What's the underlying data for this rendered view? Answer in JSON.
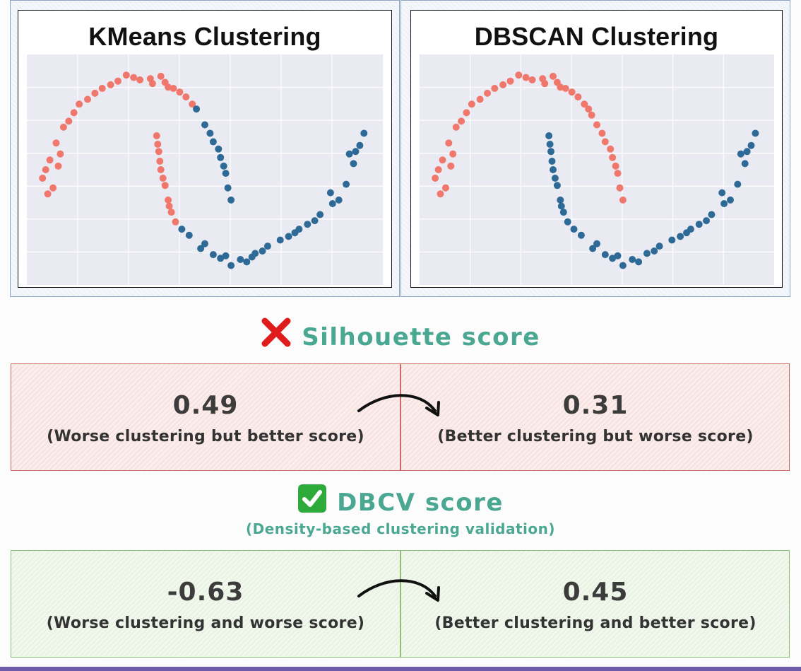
{
  "plots": [
    {
      "title": "KMeans Clustering"
    },
    {
      "title": "DBSCAN Clustering"
    }
  ],
  "chart_data": [
    {
      "type": "scatter",
      "title": "KMeans Clustering",
      "xlim": [
        -1.2,
        2.2
      ],
      "ylim": [
        -0.7,
        1.2
      ],
      "grid": true,
      "colors": {
        "cluster_a": "#f0776c",
        "cluster_b": "#2e6a96"
      },
      "series": [
        {
          "color": "#f0776c",
          "points": [
            [
              -1.0,
              0.05
            ],
            [
              -1.05,
              0.18
            ],
            [
              -0.98,
              0.33
            ],
            [
              -0.92,
              0.47
            ],
            [
              -0.85,
              0.6
            ],
            [
              -0.75,
              0.72
            ],
            [
              -0.62,
              0.83
            ],
            [
              -0.48,
              0.92
            ],
            [
              -0.33,
              0.98
            ],
            [
              -0.18,
              1.01
            ],
            [
              -0.02,
              1.0
            ],
            [
              0.12,
              0.97
            ],
            [
              0.26,
              0.89
            ],
            [
              0.38,
              0.79
            ],
            [
              -0.95,
              0.1
            ],
            [
              -0.88,
              0.38
            ],
            [
              -0.7,
              0.79
            ],
            [
              -0.4,
              0.95
            ],
            [
              0.0,
              0.96
            ],
            [
              0.2,
              0.92
            ],
            [
              0.32,
              0.85
            ],
            [
              -0.55,
              0.88
            ],
            [
              -0.25,
              1.03
            ],
            [
              0.08,
              1.02
            ],
            [
              -1.02,
              0.25
            ],
            [
              -0.8,
              0.65
            ],
            [
              0.15,
              0.93
            ],
            [
              -0.12,
              0.99
            ],
            [
              -0.9,
              0.28
            ],
            [
              0.04,
              0.53
            ],
            [
              0.06,
              0.4
            ],
            [
              0.08,
              0.25
            ],
            [
              0.12,
              0.12
            ],
            [
              0.15,
              0.0
            ],
            [
              0.18,
              -0.1
            ],
            [
              0.22,
              -0.18
            ],
            [
              0.07,
              0.32
            ],
            [
              0.1,
              0.18
            ],
            [
              0.16,
              -0.05
            ],
            [
              0.05,
              0.46
            ]
          ]
        },
        {
          "color": "#2e6a96",
          "points": [
            [
              0.28,
              -0.24
            ],
            [
              0.35,
              -0.29
            ],
            [
              0.46,
              -0.4
            ],
            [
              0.58,
              -0.45
            ],
            [
              0.7,
              -0.46
            ],
            [
              0.84,
              -0.49
            ],
            [
              0.98,
              -0.44
            ],
            [
              1.1,
              -0.38
            ],
            [
              1.22,
              -0.33
            ],
            [
              1.36,
              -0.27
            ],
            [
              1.48,
              -0.2
            ],
            [
              1.6,
              -0.12
            ],
            [
              1.72,
              -0.03
            ],
            [
              1.85,
              0.13
            ],
            [
              1.92,
              0.3
            ],
            [
              1.98,
              0.45
            ],
            [
              2.02,
              0.55
            ],
            [
              1.88,
              0.38
            ],
            [
              1.7,
              0.06
            ],
            [
              0.75,
              -0.54
            ],
            [
              0.9,
              -0.51
            ],
            [
              1.3,
              -0.3
            ],
            [
              1.55,
              -0.17
            ],
            [
              0.5,
              -0.36
            ],
            [
              1.05,
              -0.42
            ],
            [
              1.94,
              0.4
            ],
            [
              1.78,
              0.0
            ],
            [
              0.65,
              -0.48
            ],
            [
              1.4,
              -0.24
            ],
            [
              0.95,
              -0.47
            ],
            [
              0.42,
              0.75
            ],
            [
              0.5,
              0.62
            ],
            [
              0.58,
              0.48
            ],
            [
              0.65,
              0.35
            ],
            [
              0.7,
              0.22
            ],
            [
              0.72,
              0.1
            ],
            [
              0.75,
              0.0
            ],
            [
              0.55,
              0.55
            ],
            [
              0.68,
              0.28
            ],
            [
              0.63,
              0.42
            ]
          ]
        }
      ]
    },
    {
      "type": "scatter",
      "title": "DBSCAN Clustering",
      "xlim": [
        -1.2,
        2.2
      ],
      "ylim": [
        -0.7,
        1.2
      ],
      "grid": true,
      "colors": {
        "cluster_a": "#f0776c",
        "cluster_b": "#2e6a96"
      },
      "series": [
        {
          "color": "#f0776c",
          "points": [
            [
              -1.0,
              0.05
            ],
            [
              -1.05,
              0.18
            ],
            [
              -0.98,
              0.33
            ],
            [
              -0.92,
              0.47
            ],
            [
              -0.85,
              0.6
            ],
            [
              -0.75,
              0.72
            ],
            [
              -0.62,
              0.83
            ],
            [
              -0.48,
              0.92
            ],
            [
              -0.33,
              0.98
            ],
            [
              -0.18,
              1.01
            ],
            [
              -0.02,
              1.0
            ],
            [
              0.12,
              0.97
            ],
            [
              0.26,
              0.89
            ],
            [
              0.38,
              0.79
            ],
            [
              -0.95,
              0.1
            ],
            [
              -0.88,
              0.38
            ],
            [
              -0.7,
              0.79
            ],
            [
              -0.4,
              0.95
            ],
            [
              0.0,
              0.96
            ],
            [
              0.2,
              0.92
            ],
            [
              0.32,
              0.85
            ],
            [
              -0.55,
              0.88
            ],
            [
              -0.25,
              1.03
            ],
            [
              0.08,
              1.02
            ],
            [
              -1.02,
              0.25
            ],
            [
              -0.8,
              0.65
            ],
            [
              0.15,
              0.93
            ],
            [
              -0.12,
              0.99
            ],
            [
              -0.9,
              0.28
            ],
            [
              0.42,
              0.75
            ],
            [
              0.5,
              0.62
            ],
            [
              0.58,
              0.48
            ],
            [
              0.65,
              0.35
            ],
            [
              0.7,
              0.22
            ],
            [
              0.72,
              0.1
            ],
            [
              0.75,
              0.0
            ],
            [
              0.55,
              0.55
            ],
            [
              0.68,
              0.28
            ],
            [
              0.63,
              0.42
            ],
            [
              0.45,
              0.7
            ]
          ]
        },
        {
          "color": "#2e6a96",
          "points": [
            [
              0.04,
              0.53
            ],
            [
              0.06,
              0.4
            ],
            [
              0.08,
              0.25
            ],
            [
              0.12,
              0.12
            ],
            [
              0.15,
              0.0
            ],
            [
              0.18,
              -0.1
            ],
            [
              0.22,
              -0.18
            ],
            [
              0.07,
              0.32
            ],
            [
              0.1,
              0.18
            ],
            [
              0.16,
              -0.05
            ],
            [
              0.05,
              0.46
            ],
            [
              0.28,
              -0.24
            ],
            [
              0.35,
              -0.29
            ],
            [
              0.46,
              -0.4
            ],
            [
              0.58,
              -0.45
            ],
            [
              0.7,
              -0.46
            ],
            [
              0.84,
              -0.49
            ],
            [
              0.98,
              -0.44
            ],
            [
              1.1,
              -0.38
            ],
            [
              1.22,
              -0.33
            ],
            [
              1.36,
              -0.27
            ],
            [
              1.48,
              -0.2
            ],
            [
              1.6,
              -0.12
            ],
            [
              1.72,
              -0.03
            ],
            [
              1.85,
              0.13
            ],
            [
              1.92,
              0.3
            ],
            [
              1.98,
              0.45
            ],
            [
              2.02,
              0.55
            ],
            [
              1.88,
              0.38
            ],
            [
              1.7,
              0.06
            ],
            [
              0.75,
              -0.54
            ],
            [
              0.9,
              -0.51
            ],
            [
              1.3,
              -0.3
            ],
            [
              1.55,
              -0.17
            ],
            [
              0.5,
              -0.36
            ],
            [
              1.05,
              -0.42
            ],
            [
              1.94,
              0.4
            ],
            [
              1.78,
              0.0
            ],
            [
              0.65,
              -0.48
            ],
            [
              1.4,
              -0.24
            ]
          ]
        }
      ]
    }
  ],
  "silhouette": {
    "title": "Silhouette score",
    "icon": "cross-mark-icon",
    "icon_color": "#e01b1b",
    "left": {
      "value": "0.49",
      "desc": "(Worse clustering but better score)"
    },
    "right": {
      "value": "0.31",
      "desc": "(Better clustering but worse score)"
    }
  },
  "dbcv": {
    "title": "DBCV score",
    "subtitle": "(Density-based clustering validation)",
    "icon": "check-mark-icon",
    "icon_color": "#2eaa3a",
    "left": {
      "value": "-0.63",
      "desc": "(Worse clustering and worse score)"
    },
    "right": {
      "value": "0.45",
      "desc": "(Better clustering and better score)"
    }
  }
}
